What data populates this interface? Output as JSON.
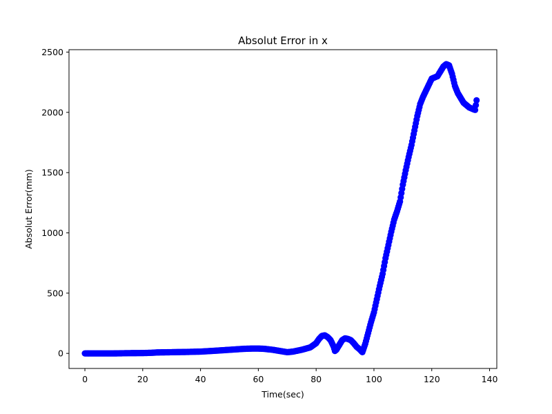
{
  "chart_data": {
    "type": "scatter",
    "title": "Absolut Error in x",
    "xlabel": "Time(sec)",
    "ylabel": "Absolut Error(mm)",
    "xlim": [
      -5.5,
      142.5
    ],
    "ylim": [
      -125,
      2520
    ],
    "xticks": [
      0,
      20,
      40,
      60,
      80,
      100,
      120,
      140
    ],
    "yticks": [
      0,
      500,
      1000,
      1500,
      2000,
      2500
    ],
    "grid": false,
    "legend": "none",
    "marker_color": "#0000ff",
    "series": [
      {
        "x": [
          0,
          5,
          10,
          15,
          20,
          23,
          25,
          30,
          35,
          40,
          45,
          50,
          55,
          58,
          60,
          62,
          65,
          68,
          70,
          72,
          75,
          78,
          80,
          81,
          82,
          83,
          84,
          85,
          86,
          86.5,
          87,
          88,
          89,
          90,
          91,
          92,
          93,
          94,
          95,
          96,
          97,
          98,
          99,
          100,
          101,
          102,
          103,
          104,
          105,
          106,
          107,
          108,
          109,
          110,
          111,
          112,
          113,
          114,
          115,
          116,
          117,
          118,
          119,
          120,
          121,
          122,
          123,
          124,
          125,
          126,
          127,
          128,
          129,
          130,
          131,
          132,
          133,
          134,
          135,
          135.5
        ],
        "y": [
          0,
          0,
          0,
          2,
          3,
          5,
          8,
          10,
          12,
          15,
          22,
          30,
          38,
          40,
          40,
          38,
          30,
          18,
          10,
          15,
          30,
          50,
          85,
          120,
          145,
          150,
          135,
          110,
          60,
          20,
          30,
          70,
          110,
          125,
          120,
          110,
          85,
          55,
          35,
          10,
          80,
          170,
          260,
          340,
          450,
          560,
          660,
          790,
          900,
          1010,
          1110,
          1180,
          1260,
          1400,
          1520,
          1630,
          1730,
          1850,
          1970,
          2070,
          2130,
          2180,
          2230,
          2280,
          2290,
          2300,
          2340,
          2380,
          2400,
          2390,
          2320,
          2220,
          2160,
          2120,
          2080,
          2060,
          2040,
          2030,
          2020,
          2100
        ]
      }
    ]
  }
}
